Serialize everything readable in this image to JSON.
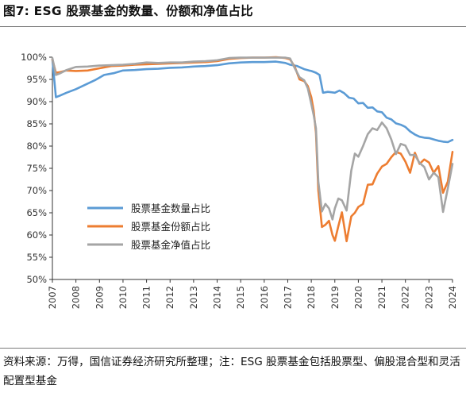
{
  "header": {
    "title": "图7: ESG 股票基金的数量、份额和净值占比"
  },
  "footer": {
    "source_text": "资料来源：万得，国信证券经济研究所整理；注：ESG 股票基金包括股票型、偏股混合型和灵活配置型基金"
  },
  "chart_data": {
    "type": "line",
    "x_tick_labels": [
      "2007",
      "2008",
      "2009",
      "2010",
      "2011",
      "2012",
      "2013",
      "2014",
      "2015",
      "2016",
      "2017",
      "2018",
      "2019",
      "2020",
      "2021",
      "2022",
      "2023",
      "2024"
    ],
    "y_tick_labels": [
      "50%",
      "55%",
      "60%",
      "65%",
      "70%",
      "75%",
      "80%",
      "85%",
      "90%",
      "95%",
      "100%"
    ],
    "xlim": [
      2007,
      2024
    ],
    "ylim": [
      50,
      100
    ],
    "grid": false,
    "legend_position": "lower-left",
    "series": [
      {
        "name": "股票基金数量占比",
        "color": "#5b9bd5",
        "x": [
          2007.0,
          2007.15,
          2007.3,
          2007.6,
          2008.0,
          2008.4,
          2008.8,
          2009.2,
          2009.6,
          2010.0,
          2010.5,
          2011.0,
          2011.5,
          2012.0,
          2012.5,
          2013.0,
          2013.5,
          2014.0,
          2014.5,
          2015.0,
          2015.5,
          2016.0,
          2016.5,
          2016.9,
          2017.1,
          2017.4,
          2017.7,
          2017.9,
          2018.0,
          2018.1,
          2018.2,
          2018.35,
          2018.5,
          2018.7,
          2018.85,
          2019.0,
          2019.2,
          2019.4,
          2019.6,
          2019.8,
          2020.0,
          2020.2,
          2020.4,
          2020.6,
          2020.8,
          2021.0,
          2021.2,
          2021.4,
          2021.6,
          2021.8,
          2022.0,
          2022.2,
          2022.4,
          2022.6,
          2022.8,
          2023.0,
          2023.2,
          2023.4,
          2023.6,
          2023.8,
          2024.0
        ],
        "y": [
          99.5,
          91.0,
          91.3,
          92.0,
          92.8,
          93.8,
          94.8,
          96.0,
          96.4,
          97.0,
          97.1,
          97.3,
          97.4,
          97.6,
          97.7,
          97.9,
          98.0,
          98.2,
          98.6,
          98.8,
          98.9,
          98.9,
          99.0,
          98.7,
          98.3,
          98.0,
          97.3,
          97.0,
          96.9,
          96.7,
          96.5,
          96.0,
          92.0,
          92.2,
          92.1,
          92.0,
          92.5,
          91.9,
          90.9,
          90.7,
          89.6,
          89.7,
          88.6,
          88.7,
          87.8,
          87.6,
          86.4,
          86.0,
          85.1,
          84.8,
          84.3,
          83.3,
          82.6,
          82.1,
          81.9,
          81.8,
          81.5,
          81.2,
          81.0,
          80.9,
          81.4
        ]
      },
      {
        "name": "股票基金份额占比",
        "color": "#ed7d31",
        "x": [
          2007.0,
          2007.15,
          2007.3,
          2007.6,
          2008.0,
          2008.5,
          2009.0,
          2009.5,
          2010.0,
          2010.5,
          2011.0,
          2011.5,
          2012.0,
          2012.5,
          2013.0,
          2013.5,
          2014.0,
          2014.5,
          2015.0,
          2015.5,
          2016.0,
          2016.5,
          2016.9,
          2017.1,
          2017.3,
          2017.5,
          2017.7,
          2017.85,
          2018.0,
          2018.1,
          2018.2,
          2018.3,
          2018.45,
          2018.6,
          2018.75,
          2018.9,
          2019.0,
          2019.15,
          2019.3,
          2019.5,
          2019.7,
          2019.85,
          2020.0,
          2020.2,
          2020.4,
          2020.6,
          2020.8,
          2021.0,
          2021.2,
          2021.4,
          2021.6,
          2021.8,
          2022.0,
          2022.2,
          2022.4,
          2022.6,
          2022.8,
          2023.0,
          2023.2,
          2023.4,
          2023.6,
          2023.8,
          2024.0
        ],
        "y": [
          99.5,
          96.5,
          96.6,
          97.0,
          96.9,
          97.0,
          97.5,
          98.0,
          98.1,
          98.3,
          98.4,
          98.5,
          98.6,
          98.7,
          98.8,
          98.9,
          99.1,
          99.6,
          99.8,
          99.9,
          99.9,
          100.0,
          99.8,
          99.5,
          97.8,
          95.0,
          94.6,
          93.5,
          91.0,
          88.0,
          83.0,
          70.0,
          61.8,
          62.3,
          63.2,
          60.0,
          58.7,
          62.0,
          65.1,
          58.6,
          64.2,
          65.0,
          66.3,
          67.0,
          71.3,
          71.4,
          73.8,
          75.4,
          76.0,
          77.5,
          78.7,
          78.3,
          76.5,
          74.0,
          78.5,
          76.0,
          77.0,
          76.3,
          74.0,
          75.5,
          69.5,
          72.0,
          78.7
        ]
      },
      {
        "name": "股票基金净值占比",
        "color": "#a5a5a5",
        "x": [
          2007.0,
          2007.15,
          2007.3,
          2007.6,
          2008.0,
          2008.5,
          2009.0,
          2009.5,
          2010.0,
          2010.5,
          2011.0,
          2011.5,
          2012.0,
          2012.5,
          2013.0,
          2013.5,
          2014.0,
          2014.5,
          2015.0,
          2015.5,
          2016.0,
          2016.5,
          2016.9,
          2017.1,
          2017.3,
          2017.5,
          2017.7,
          2017.85,
          2018.0,
          2018.1,
          2018.2,
          2018.3,
          2018.45,
          2018.6,
          2018.75,
          2018.9,
          2019.0,
          2019.15,
          2019.3,
          2019.5,
          2019.7,
          2019.85,
          2020.0,
          2020.2,
          2020.4,
          2020.6,
          2020.8,
          2021.0,
          2021.2,
          2021.4,
          2021.6,
          2021.8,
          2022.0,
          2022.2,
          2022.4,
          2022.6,
          2022.8,
          2023.0,
          2023.2,
          2023.4,
          2023.6,
          2023.8,
          2024.0
        ],
        "y": [
          99.8,
          96.0,
          96.3,
          97.1,
          97.8,
          97.9,
          98.1,
          98.2,
          98.3,
          98.5,
          98.8,
          98.7,
          98.8,
          98.8,
          99.0,
          99.1,
          99.3,
          99.8,
          99.9,
          99.9,
          99.9,
          99.9,
          99.9,
          99.7,
          97.5,
          95.5,
          94.8,
          93.0,
          89.5,
          87.0,
          84.0,
          72.0,
          65.3,
          67.0,
          66.0,
          63.5,
          66.0,
          68.2,
          67.8,
          65.5,
          74.5,
          78.3,
          77.6,
          80.0,
          82.7,
          84.0,
          83.6,
          85.3,
          84.0,
          81.5,
          78.2,
          80.5,
          80.1,
          78.0,
          78.0,
          76.2,
          75.3,
          72.5,
          74.0,
          73.0,
          65.2,
          70.5,
          76.0
        ]
      }
    ]
  }
}
